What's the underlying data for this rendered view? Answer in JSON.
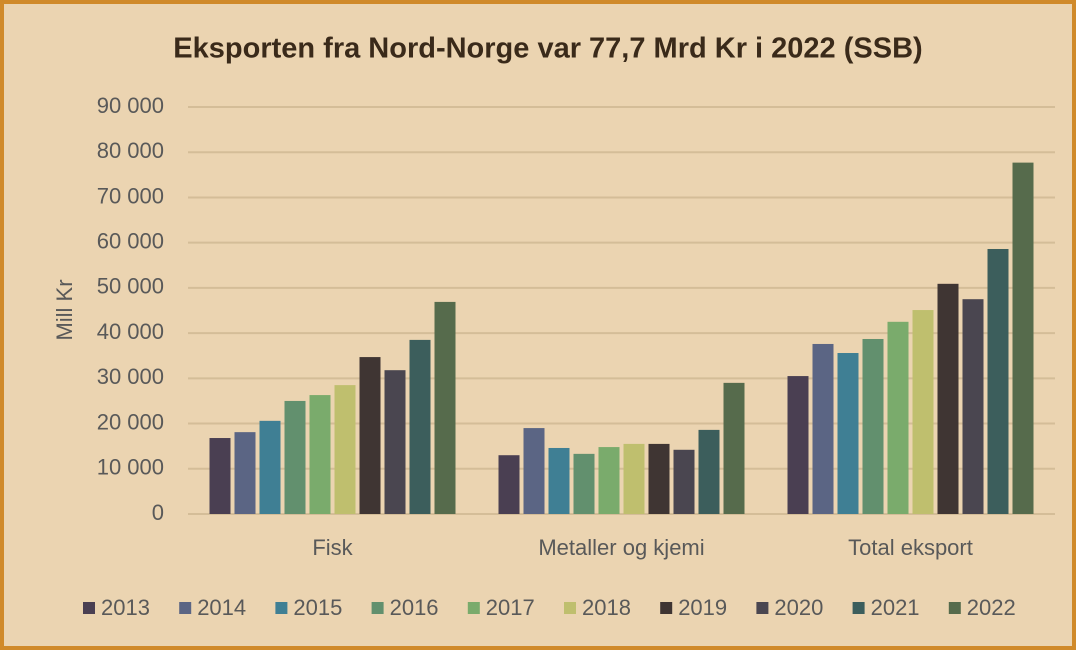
{
  "chart_data": {
    "type": "bar",
    "title": "Eksporten fra Nord-Norge var 77,7 Mrd Kr i 2022 (SSB)",
    "y_label": "Mill Kr",
    "categories": [
      "Fisk",
      "Metaller og kjemi",
      "Total eksport"
    ],
    "series": [
      {
        "name": "2013",
        "color": "#4a3f52",
        "values": [
          16800,
          13000,
          30500
        ]
      },
      {
        "name": "2014",
        "color": "#5b6584",
        "values": [
          18100,
          19000,
          37600
        ]
      },
      {
        "name": "2015",
        "color": "#3f7f94",
        "values": [
          20600,
          14600,
          35600
        ]
      },
      {
        "name": "2016",
        "color": "#62906e",
        "values": [
          25000,
          13300,
          38700
        ]
      },
      {
        "name": "2017",
        "color": "#7aab6c",
        "values": [
          26300,
          14800,
          42500
        ]
      },
      {
        "name": "2018",
        "color": "#bfbf6e",
        "values": [
          28500,
          15500,
          45100
        ]
      },
      {
        "name": "2019",
        "color": "#3f3533",
        "values": [
          34700,
          15500,
          50900
        ]
      },
      {
        "name": "2020",
        "color": "#4a4650",
        "values": [
          31800,
          14200,
          47500
        ]
      },
      {
        "name": "2021",
        "color": "#3c5e5c",
        "values": [
          38500,
          18600,
          58600
        ]
      },
      {
        "name": "2022",
        "color": "#566b4c",
        "values": [
          46900,
          29000,
          77700
        ]
      }
    ],
    "ylim": [
      0,
      90000
    ],
    "yticks": [
      0,
      {
        "value": 10000,
        "label": "10 000"
      },
      {
        "value": 20000,
        "label": "20 000"
      },
      {
        "value": 30000,
        "label": "30 000"
      },
      {
        "value": 40000,
        "label": "40 000"
      },
      {
        "value": 50000,
        "label": "50 000"
      },
      {
        "value": 60000,
        "label": "60 000"
      },
      {
        "value": 70000,
        "label": "70 000"
      },
      {
        "value": 80000,
        "label": "80 000"
      },
      {
        "value": 90000,
        "label": "90 000"
      }
    ],
    "grid": true,
    "legend": "bottom"
  }
}
